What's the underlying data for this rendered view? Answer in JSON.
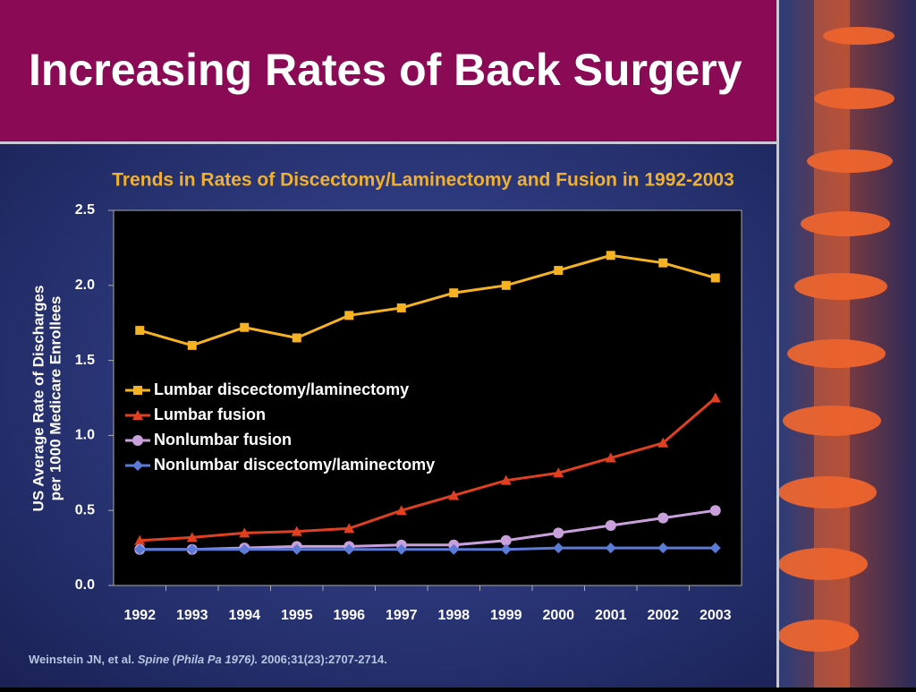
{
  "header": {
    "title": "Increasing Rates of Back Surgery"
  },
  "chart_data": {
    "type": "line",
    "title": "Trends in Rates of Discectomy/Laminectomy and Fusion in 1992-2003",
    "ylabel": [
      "US Average Rate of Discharges",
      "per 1000 Medicare Enrollees"
    ],
    "categories": [
      "1992",
      "1993",
      "1994",
      "1995",
      "1996",
      "1997",
      "1998",
      "1999",
      "2000",
      "2001",
      "2002",
      "2003"
    ],
    "ylim": [
      0,
      2.5
    ],
    "yticks": [
      {
        "value": 0,
        "label": "0.0"
      },
      0.5,
      {
        "value": 1,
        "label": "1.0"
      },
      1.5,
      {
        "value": 2,
        "label": "2.0"
      },
      2.5
    ],
    "series": [
      {
        "name": "Lumbar discectomy/laminectomy",
        "color": "#f5b324",
        "marker": "square",
        "values": [
          1.7,
          1.6,
          1.72,
          1.65,
          1.8,
          1.85,
          1.95,
          2.0,
          2.1,
          2.2,
          2.15,
          2.05
        ]
      },
      {
        "name": "Lumbar fusion",
        "color": "#e0401f",
        "marker": "triangle",
        "values": [
          0.3,
          0.32,
          0.35,
          0.36,
          0.38,
          0.5,
          0.6,
          0.7,
          0.75,
          0.85,
          0.95,
          1.25
        ]
      },
      {
        "name": "Nonlumbar fusion",
        "color": "#c9a0dc",
        "marker": "circle",
        "values": [
          0.24,
          0.24,
          0.25,
          0.26,
          0.26,
          0.27,
          0.27,
          0.3,
          0.35,
          0.4,
          0.45,
          0.5
        ]
      },
      {
        "name": "Nonlumbar discectomy/laminectomy",
        "color": "#5a7bd8",
        "marker": "diamond",
        "values": [
          0.24,
          0.24,
          0.24,
          0.24,
          0.24,
          0.24,
          0.24,
          0.24,
          0.25,
          0.25,
          0.25,
          0.25
        ]
      }
    ]
  },
  "footnote": {
    "authors": "Weinstein JN, et al.",
    "journal": "Spine (Phila Pa 1976).",
    "citation": "2006;31(23):2707-2714."
  }
}
